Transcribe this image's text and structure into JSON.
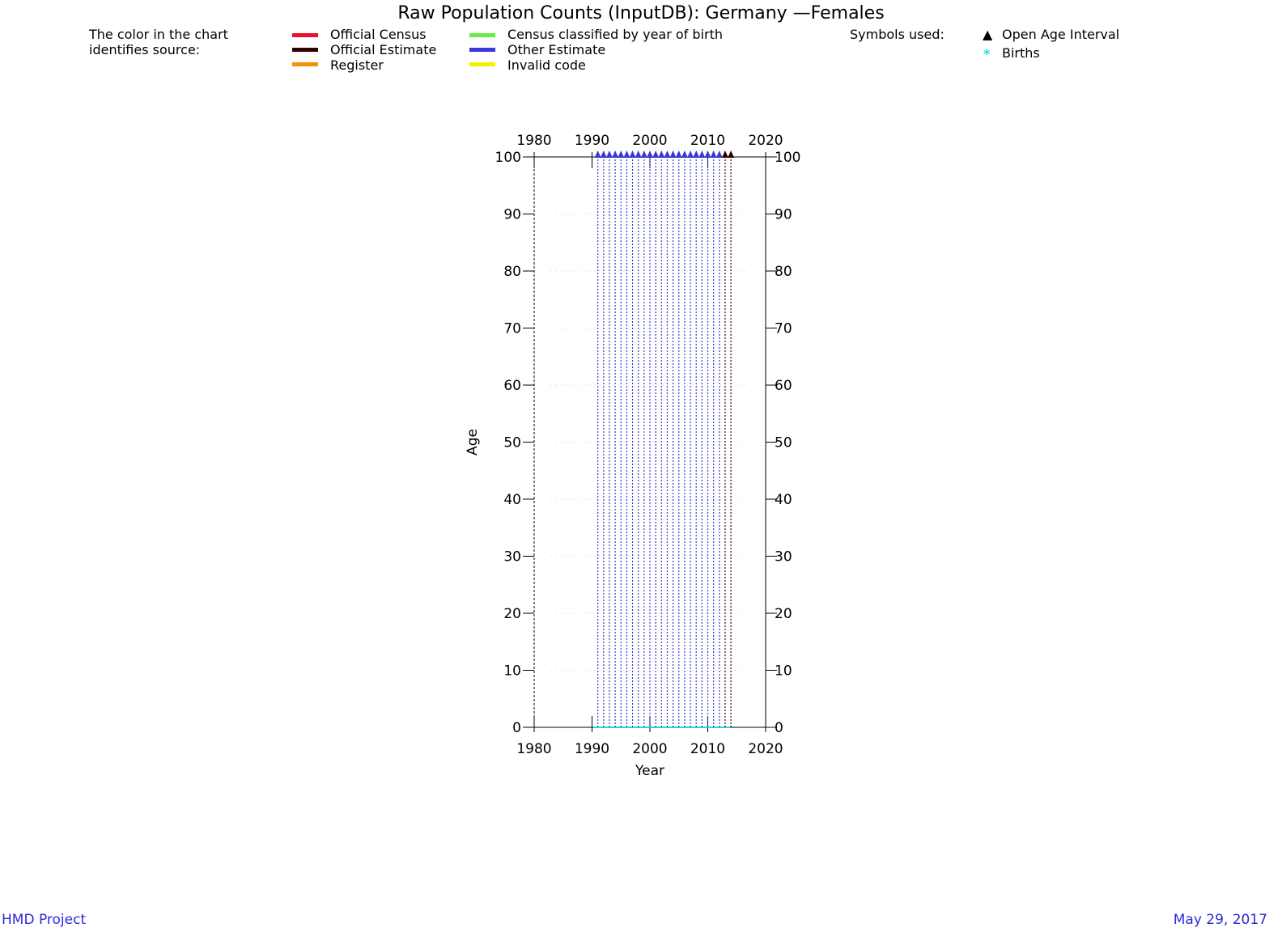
{
  "header": {
    "title": "Raw Population Counts (InputDB): Germany —Females",
    "color_note": "The color in the chart\nidentifies source:",
    "symbols_label": "Symbols used:"
  },
  "legend": {
    "sources": [
      {
        "label": "Official Census",
        "color": "#e8102e"
      },
      {
        "label": "Official Estimate",
        "color": "#300000"
      },
      {
        "label": "Register",
        "color": "#f59000"
      },
      {
        "label": "Census classified by year of birth",
        "color": "#66ee44"
      },
      {
        "label": "Other Estimate",
        "color": "#3838d8"
      },
      {
        "label": "Invalid code",
        "color": "#f2f200"
      }
    ],
    "symbols": [
      {
        "label": "Open Age Interval",
        "glyph": "▲",
        "color": "#000000"
      },
      {
        "label": "Births",
        "glyph": "*",
        "color": "#22dddd"
      }
    ]
  },
  "chart_data": {
    "type": "line",
    "xlabel": "Year",
    "ylabel": "Age",
    "xlim": [
      1980,
      2020
    ],
    "ylim": [
      0,
      100
    ],
    "xticks": [
      1980,
      1990,
      2000,
      2010,
      2020
    ],
    "yticks": [
      0,
      10,
      20,
      30,
      40,
      50,
      60,
      70,
      80,
      90,
      100
    ],
    "grid": true,
    "series": [
      {
        "name": "Other Estimate",
        "color": "#3838d8",
        "x": [
          1991,
          1992,
          1993,
          1994,
          1995,
          1996,
          1997,
          1998,
          1999,
          2000,
          2001,
          2002,
          2003,
          2004,
          2005,
          2006,
          2007,
          2008,
          2009,
          2010,
          2011,
          2012
        ],
        "age_range": [
          0,
          100
        ]
      },
      {
        "name": "Official Estimate",
        "color": "#300000",
        "x": [
          2013,
          2014
        ],
        "age_range": [
          0,
          100
        ]
      }
    ],
    "open_age_interval": 100
  },
  "footer": {
    "left": "HMD Project",
    "right": "May 29, 2017"
  }
}
